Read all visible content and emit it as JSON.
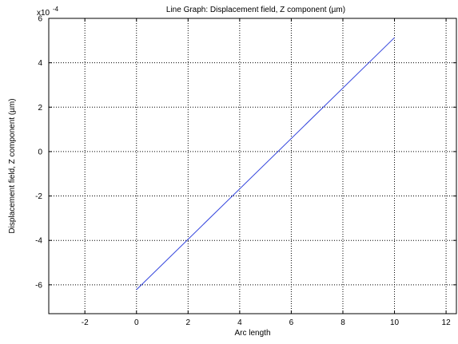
{
  "chart_data": {
    "type": "line",
    "title": "Line Graph: Displacement field, Z component (µm)",
    "xlabel": "Arc length",
    "ylabel": "Displacement field, Z component (µm)",
    "xlim": [
      -3.4,
      12.4
    ],
    "ylim": [
      -7.3,
      6.0
    ],
    "y_scale_base": "x10",
    "y_scale_exponent": "-4",
    "x_ticks": [
      -2,
      0,
      2,
      4,
      6,
      8,
      10,
      12
    ],
    "y_ticks": [
      -6,
      -4,
      -2,
      0,
      2,
      4,
      6
    ],
    "x_tick_labels": [
      "-2",
      "0",
      "2",
      "4",
      "6",
      "8",
      "10",
      "12"
    ],
    "y_tick_labels": [
      "-6",
      "-4",
      "-2",
      "0",
      "2",
      "4",
      "6"
    ],
    "grid": true,
    "grid_style": "dotted",
    "series": [
      {
        "color": "#3344dd",
        "x": [
          0,
          10
        ],
        "y": [
          -6.22,
          5.13
        ]
      }
    ]
  }
}
